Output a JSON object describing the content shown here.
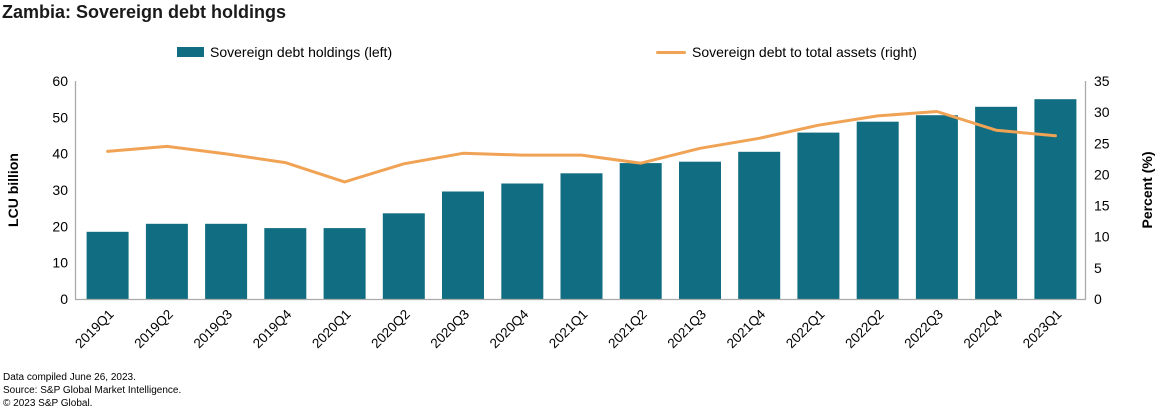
{
  "title": "Zambia: Sovereign debt holdings",
  "legend": {
    "bars_label": "Sovereign debt holdings (left)",
    "line_label": "Sovereign debt to total assets (right)"
  },
  "colors": {
    "bar": "#116e82",
    "line": "#f0a355",
    "axis_line": "#aaaaaa",
    "text": "#000000"
  },
  "footer": {
    "line1": "Data compiled June 26, 2023.",
    "line2": "Source: S&P Global Market Intelligence.",
    "line3": "© 2023 S&P Global."
  },
  "chart_data": {
    "type": "bar",
    "subtype": "bar+line combo, dual axis",
    "title": "Zambia: Sovereign debt holdings",
    "categories": [
      "2019Q1",
      "2019Q2",
      "2019Q3",
      "2019Q4",
      "2020Q1",
      "2020Q2",
      "2020Q3",
      "2020Q4",
      "2021Q1",
      "2021Q2",
      "2021Q3",
      "2021Q4",
      "2022Q1",
      "2022Q2",
      "2022Q3",
      "2022Q4",
      "2023Q1"
    ],
    "series": [
      {
        "name": "Sovereign debt holdings (left)",
        "type": "bar",
        "axis": "left",
        "values": [
          18.5,
          20.7,
          20.7,
          19.5,
          19.5,
          23.6,
          29.6,
          31.8,
          34.6,
          37.4,
          37.8,
          40.5,
          45.8,
          48.8,
          50.6,
          52.9,
          55.0
        ]
      },
      {
        "name": "Sovereign debt to total assets (right)",
        "type": "line",
        "axis": "right",
        "values": [
          23.7,
          24.5,
          23.3,
          21.9,
          18.8,
          21.7,
          23.4,
          23.1,
          23.1,
          21.8,
          24.2,
          25.8,
          27.9,
          29.4,
          30.1,
          27.1,
          26.2
        ]
      }
    ],
    "left_axis": {
      "title": "LCU billion",
      "min": 0,
      "max": 60,
      "ticks": [
        0,
        10,
        20,
        30,
        40,
        50,
        60
      ]
    },
    "right_axis": {
      "title": "Percent (%)",
      "min": 0,
      "max": 35,
      "ticks": [
        0,
        5,
        10,
        15,
        20,
        25,
        30,
        35
      ]
    },
    "grid": false,
    "legend_position": "top",
    "x_label_rotation": -45
  }
}
